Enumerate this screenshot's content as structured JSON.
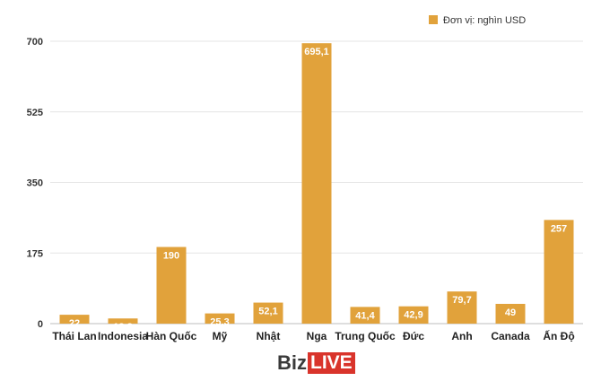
{
  "chart_data": {
    "type": "bar",
    "categories": [
      "Thái Lan",
      "Indonesia",
      "Hàn Quốc",
      "Mỹ",
      "Nhật",
      "Nga",
      "Trung Quốc",
      "Đức",
      "Anh",
      "Canada",
      "Ấn Độ"
    ],
    "values": [
      22,
      12.8,
      190,
      25.3,
      52.1,
      695.1,
      41.4,
      42.9,
      79.7,
      49,
      257
    ],
    "value_labels": [
      "22",
      "12,8",
      "190",
      "25,3",
      "52,1",
      "695,1",
      "41,4",
      "42,9",
      "79,7",
      "49",
      "257"
    ],
    "y_ticks": [
      0,
      175,
      350,
      525,
      700
    ],
    "ylim": [
      0,
      700
    ],
    "legend": "Đơn vị: nghìn USD",
    "legend_position": "top-right",
    "grid": true,
    "bar_color": "#e1a23b"
  },
  "logo": {
    "part1": "Biz",
    "part2": "LIVE"
  }
}
